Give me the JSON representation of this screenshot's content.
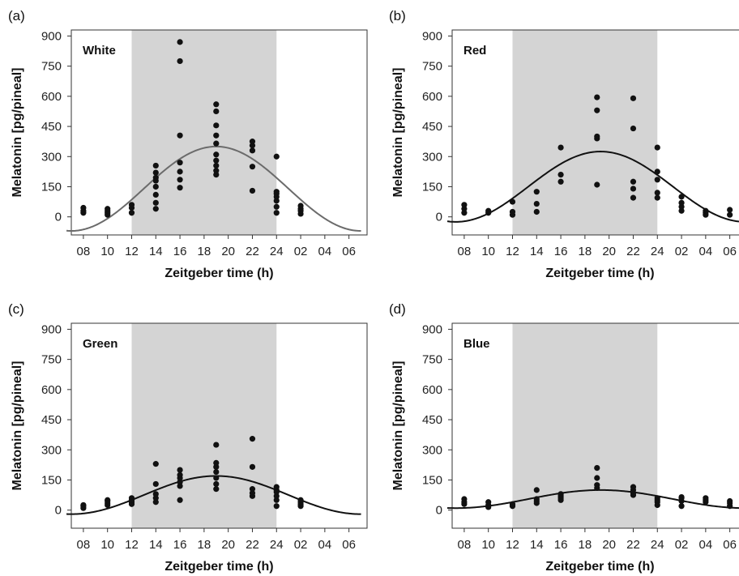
{
  "colors": {
    "dark_shade": "#d4d4d4",
    "point": "#111111",
    "curve_white": "#6b6b6b",
    "curve_color": "#111111"
  },
  "chart_data": [
    {
      "type": "scatter",
      "panel": "(a)",
      "label": "White",
      "xlabel": "Zeitgeber time (h)",
      "ylabel": "Melatonin [pg/pineal]",
      "x_ticks": [
        "08",
        "10",
        "12",
        "14",
        "16",
        "18",
        "20",
        "22",
        "24",
        "02",
        "04",
        "06"
      ],
      "y_ticks": [
        0,
        150,
        300,
        450,
        600,
        750,
        900
      ],
      "ylim": [
        -90,
        930
      ],
      "dark_phase": [
        12,
        24
      ],
      "points": [
        [
          8,
          20
        ],
        [
          8,
          30
        ],
        [
          8,
          45
        ],
        [
          10,
          10
        ],
        [
          10,
          20
        ],
        [
          10,
          30
        ],
        [
          10,
          40
        ],
        [
          12,
          20
        ],
        [
          12,
          45
        ],
        [
          12,
          60
        ],
        [
          14,
          40
        ],
        [
          14,
          70
        ],
        [
          14,
          110
        ],
        [
          14,
          150
        ],
        [
          14,
          180
        ],
        [
          14,
          195
        ],
        [
          14,
          220
        ],
        [
          14,
          255
        ],
        [
          16,
          145
        ],
        [
          16,
          185
        ],
        [
          16,
          225
        ],
        [
          16,
          270
        ],
        [
          16,
          405
        ],
        [
          16,
          775
        ],
        [
          16,
          870
        ],
        [
          19,
          210
        ],
        [
          19,
          230
        ],
        [
          19,
          255
        ],
        [
          19,
          280
        ],
        [
          19,
          310
        ],
        [
          19,
          365
        ],
        [
          19,
          405
        ],
        [
          19,
          455
        ],
        [
          19,
          525
        ],
        [
          19,
          560
        ],
        [
          22,
          130
        ],
        [
          22,
          250
        ],
        [
          22,
          330
        ],
        [
          22,
          355
        ],
        [
          22,
          375
        ],
        [
          24,
          20
        ],
        [
          24,
          50
        ],
        [
          24,
          80
        ],
        [
          24,
          100
        ],
        [
          24,
          115
        ],
        [
          24,
          125
        ],
        [
          24,
          300
        ],
        [
          26,
          15
        ],
        [
          26,
          30
        ],
        [
          26,
          40
        ],
        [
          26,
          55
        ]
      ],
      "curve": {
        "mesor": 140,
        "amplitude": 210,
        "acrophase": 19,
        "x_range": [
          6.6,
          31.0
        ]
      }
    },
    {
      "type": "scatter",
      "panel": "(b)",
      "label": "Red",
      "xlabel": "Zeitgeber time (h)",
      "ylabel": "Melatonin [pg/pineal]",
      "x_ticks": [
        "08",
        "10",
        "12",
        "14",
        "16",
        "18",
        "20",
        "22",
        "24",
        "02",
        "04",
        "06"
      ],
      "y_ticks": [
        0,
        150,
        300,
        450,
        600,
        750,
        900
      ],
      "ylim": [
        -90,
        930
      ],
      "dark_phase": [
        12,
        24
      ],
      "points": [
        [
          8,
          20
        ],
        [
          8,
          40
        ],
        [
          8,
          60
        ],
        [
          10,
          20
        ],
        [
          10,
          30
        ],
        [
          12,
          10
        ],
        [
          12,
          25
        ],
        [
          12,
          75
        ],
        [
          14,
          25
        ],
        [
          14,
          65
        ],
        [
          14,
          125
        ],
        [
          16,
          175
        ],
        [
          16,
          210
        ],
        [
          16,
          345
        ],
        [
          19,
          160
        ],
        [
          19,
          390
        ],
        [
          19,
          400
        ],
        [
          19,
          530
        ],
        [
          19,
          595
        ],
        [
          22,
          95
        ],
        [
          22,
          140
        ],
        [
          22,
          175
        ],
        [
          22,
          440
        ],
        [
          22,
          590
        ],
        [
          24,
          95
        ],
        [
          24,
          120
        ],
        [
          24,
          185
        ],
        [
          24,
          225
        ],
        [
          24,
          345
        ],
        [
          26,
          30
        ],
        [
          26,
          50
        ],
        [
          26,
          70
        ],
        [
          26,
          100
        ],
        [
          28,
          10
        ],
        [
          28,
          20
        ],
        [
          28,
          30
        ],
        [
          30,
          10
        ],
        [
          30,
          35
        ]
      ],
      "curve": {
        "mesor": 150,
        "amplitude": 175,
        "acrophase": 19.3,
        "x_range": [
          6.6,
          31.0
        ]
      }
    },
    {
      "type": "scatter",
      "panel": "(c)",
      "label": "Green",
      "xlabel": "Zeitgeber time (h)",
      "ylabel": "Melatonin [pg/pineal]",
      "x_ticks": [
        "08",
        "10",
        "12",
        "14",
        "16",
        "18",
        "20",
        "22",
        "24",
        "02",
        "04",
        "06"
      ],
      "y_ticks": [
        0,
        150,
        300,
        450,
        600,
        750,
        900
      ],
      "ylim": [
        -90,
        930
      ],
      "dark_phase": [
        12,
        24
      ],
      "points": [
        [
          8,
          10
        ],
        [
          8,
          20
        ],
        [
          8,
          25
        ],
        [
          10,
          25
        ],
        [
          10,
          35
        ],
        [
          10,
          45
        ],
        [
          10,
          50
        ],
        [
          12,
          30
        ],
        [
          12,
          40
        ],
        [
          12,
          50
        ],
        [
          12,
          60
        ],
        [
          14,
          40
        ],
        [
          14,
          60
        ],
        [
          14,
          80
        ],
        [
          14,
          130
        ],
        [
          14,
          230
        ],
        [
          16,
          50
        ],
        [
          16,
          120
        ],
        [
          16,
          140
        ],
        [
          16,
          160
        ],
        [
          16,
          175
        ],
        [
          16,
          200
        ],
        [
          19,
          105
        ],
        [
          19,
          130
        ],
        [
          19,
          160
        ],
        [
          19,
          190
        ],
        [
          19,
          215
        ],
        [
          19,
          235
        ],
        [
          19,
          325
        ],
        [
          22,
          70
        ],
        [
          22,
          85
        ],
        [
          22,
          105
        ],
        [
          22,
          215
        ],
        [
          22,
          355
        ],
        [
          24,
          20
        ],
        [
          24,
          50
        ],
        [
          24,
          70
        ],
        [
          24,
          90
        ],
        [
          24,
          100
        ],
        [
          24,
          115
        ],
        [
          26,
          20
        ],
        [
          26,
          30
        ],
        [
          26,
          40
        ],
        [
          26,
          50
        ]
      ],
      "curve": {
        "mesor": 75,
        "amplitude": 95,
        "acrophase": 19,
        "x_range": [
          6.6,
          31.0
        ]
      }
    },
    {
      "type": "scatter",
      "panel": "(d)",
      "label": "Blue",
      "xlabel": "Zeitgeber time (h)",
      "ylabel": "Melatonin [pg/pineal]",
      "x_ticks": [
        "08",
        "10",
        "12",
        "14",
        "16",
        "18",
        "20",
        "22",
        "24",
        "02",
        "04",
        "06"
      ],
      "y_ticks": [
        0,
        150,
        300,
        450,
        600,
        750,
        900
      ],
      "ylim": [
        -90,
        930
      ],
      "dark_phase": [
        12,
        24
      ],
      "points": [
        [
          8,
          30
        ],
        [
          8,
          40
        ],
        [
          8,
          55
        ],
        [
          10,
          15
        ],
        [
          10,
          25
        ],
        [
          10,
          40
        ],
        [
          12,
          20
        ],
        [
          12,
          30
        ],
        [
          14,
          35
        ],
        [
          14,
          45
        ],
        [
          14,
          55
        ],
        [
          14,
          100
        ],
        [
          16,
          50
        ],
        [
          16,
          60
        ],
        [
          16,
          70
        ],
        [
          16,
          80
        ],
        [
          19,
          110
        ],
        [
          19,
          125
        ],
        [
          19,
          160
        ],
        [
          19,
          210
        ],
        [
          22,
          75
        ],
        [
          22,
          85
        ],
        [
          22,
          100
        ],
        [
          22,
          115
        ],
        [
          24,
          25
        ],
        [
          24,
          40
        ],
        [
          24,
          50
        ],
        [
          24,
          60
        ],
        [
          26,
          20
        ],
        [
          26,
          45
        ],
        [
          26,
          60
        ],
        [
          26,
          65
        ],
        [
          28,
          40
        ],
        [
          28,
          50
        ],
        [
          28,
          60
        ],
        [
          30,
          20
        ],
        [
          30,
          35
        ],
        [
          30,
          45
        ]
      ],
      "curve": {
        "mesor": 55,
        "amplitude": 45,
        "acrophase": 19.3,
        "x_range": [
          6.6,
          31.0
        ]
      }
    }
  ]
}
